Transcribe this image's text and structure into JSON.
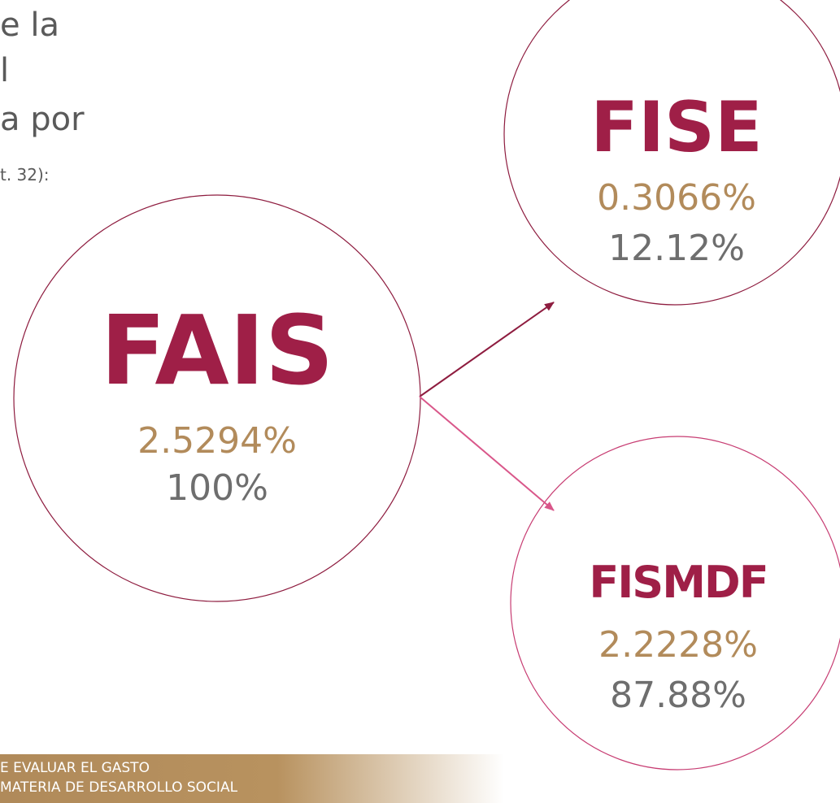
{
  "intro_lines": [
    "e la",
    "l",
    "a por"
  ],
  "intro_note": "t. 32):",
  "nodes": [
    {
      "label": "FAIS",
      "percent": "2.5294%",
      "share": "100%"
    },
    {
      "label": "FISE",
      "percent": "0.3066%",
      "share": "12.12%"
    },
    {
      "label": "FISMDF",
      "percent": "2.2228%",
      "share": "87.88%"
    }
  ],
  "footer_lines": [
    "E EVALUAR EL GASTO",
    "MATERIA DE DESARROLLO SOCIAL"
  ]
}
